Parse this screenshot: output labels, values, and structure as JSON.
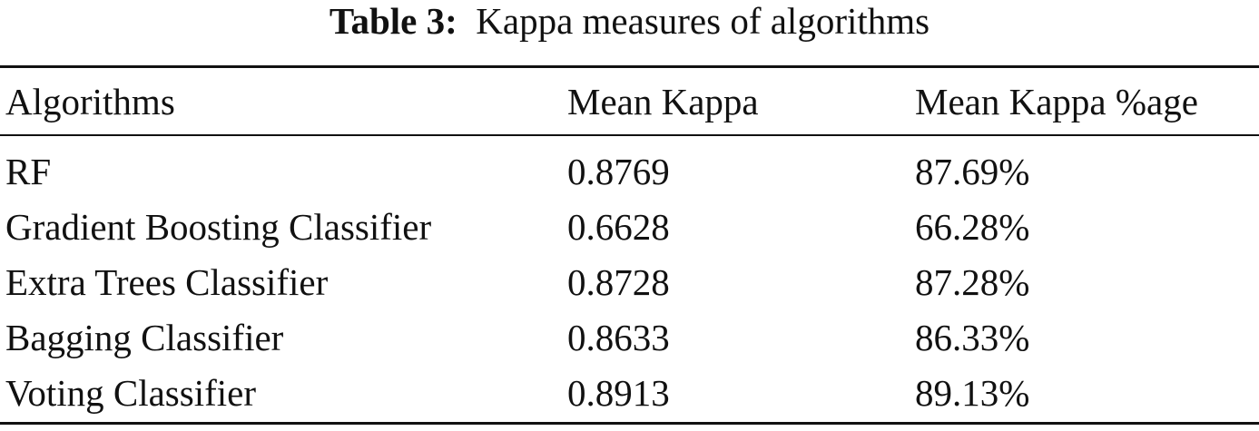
{
  "caption": {
    "label": "Table 3:",
    "title": "Kappa measures of algorithms"
  },
  "table": {
    "header": [
      "Algorithms",
      "Mean Kappa",
      "Mean Kappa %age"
    ],
    "rows": [
      [
        "RF",
        "0.8769",
        "87.69%"
      ],
      [
        "Gradient Boosting Classifier",
        "0.6628",
        "66.28%"
      ],
      [
        "Extra Trees Classifier",
        "0.8728",
        "87.28%"
      ],
      [
        "Bagging Classifier",
        "0.8633",
        "86.33%"
      ],
      [
        "Voting Classifier",
        "0.8913",
        "89.13%"
      ]
    ]
  }
}
